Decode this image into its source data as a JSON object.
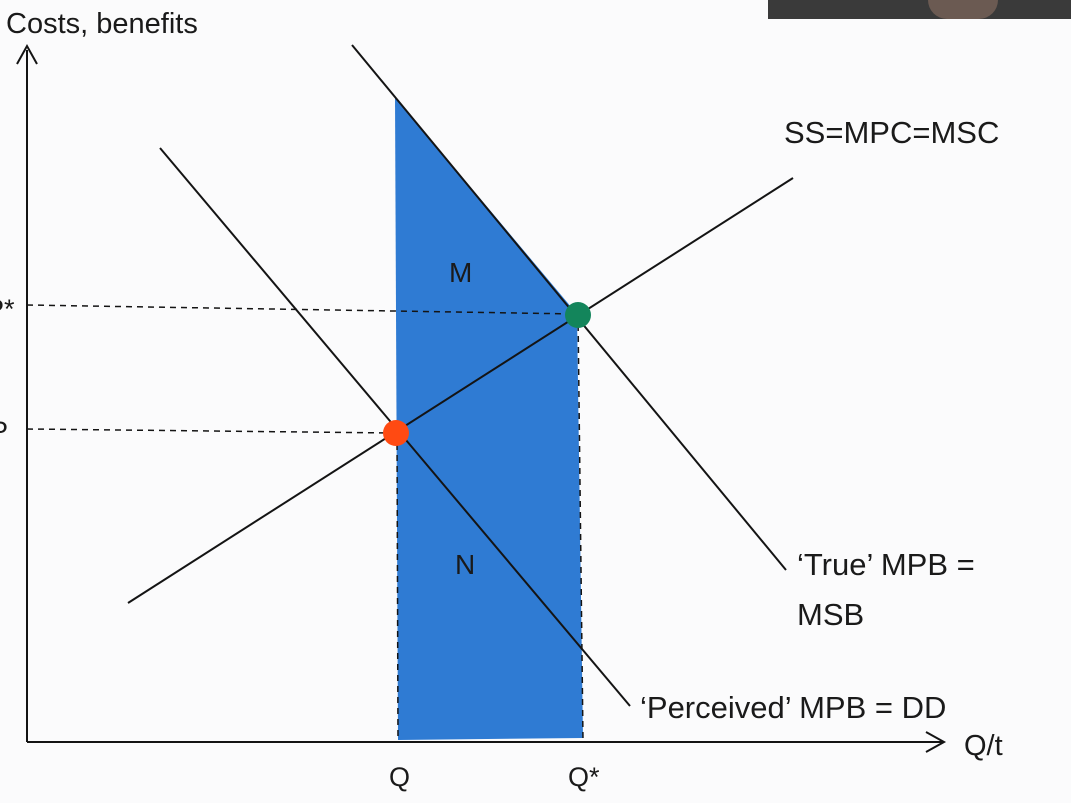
{
  "axes": {
    "y_title": "Costs, benefits",
    "x_title": "Q/t"
  },
  "ticks": {
    "y_upper": "P*",
    "y_lower": "P",
    "x_left": "Q",
    "x_right": "Q*"
  },
  "curves": {
    "supply": "SS=MPC=MSC",
    "true_mpb_line1": "‘True’ MPB =",
    "true_mpb_line2": "MSB",
    "perceived": "‘Perceived’ MPB = DD"
  },
  "areas": {
    "upper": "M",
    "lower": "N"
  },
  "colors": {
    "shaded_area": "#2f7bd3",
    "efficient_equilibrium": "#13855b",
    "market_equilibrium": "#ff4a12",
    "line": "#141414"
  }
}
